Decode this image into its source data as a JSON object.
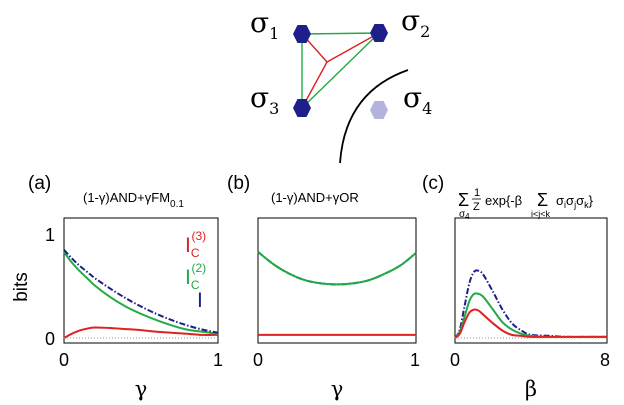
{
  "diagram": {
    "nodes": [
      {
        "label": "σ",
        "sub": "1"
      },
      {
        "label": "σ",
        "sub": "2"
      },
      {
        "label": "σ",
        "sub": "3"
      },
      {
        "label": "σ",
        "sub": "4"
      }
    ],
    "colors": {
      "node": "#1f1f8c",
      "node_faded": "#b3b3dd",
      "edge_pair": "#22aa44",
      "edge_triple": "#dd2222",
      "boundary": "#000000"
    }
  },
  "y_axis_label": "bits",
  "chart_data": [
    {
      "type": "line",
      "panel_letter": "(a)",
      "title_parts": {
        "a": "(1-γ)AND+γFM",
        "sub": "0.1"
      },
      "xlabel": "γ",
      "xlim": [
        0,
        1
      ],
      "ylim": [
        0,
        1
      ],
      "x_ticks": [
        "0",
        "1"
      ],
      "y_ticks": [
        "0",
        "1"
      ],
      "legend": [
        {
          "base": "I",
          "sub": "C",
          "sup": "(3)",
          "color": "#dd2222"
        },
        {
          "base": "I",
          "sub": "C",
          "sup": "(2)",
          "color": "#22aa44"
        },
        {
          "base": "I",
          "sub": "",
          "sup": "",
          "color": "#1f1f8c"
        }
      ],
      "x": [
        0,
        0.05,
        0.1,
        0.15,
        0.2,
        0.3,
        0.4,
        0.5,
        0.6,
        0.7,
        0.8,
        0.9,
        1.0
      ],
      "series": [
        {
          "color": "#dd2222",
          "style": "solid",
          "values": [
            0.0,
            0.04,
            0.07,
            0.09,
            0.1,
            0.095,
            0.085,
            0.075,
            0.06,
            0.05,
            0.04,
            0.03,
            0.03
          ]
        },
        {
          "color": "#22aa44",
          "style": "solid",
          "values": [
            0.82,
            0.72,
            0.64,
            0.57,
            0.5,
            0.39,
            0.3,
            0.23,
            0.17,
            0.12,
            0.08,
            0.06,
            0.04
          ]
        },
        {
          "color": "#1f1f8c",
          "style": "dashdot",
          "values": [
            0.84,
            0.76,
            0.69,
            0.63,
            0.57,
            0.47,
            0.38,
            0.3,
            0.23,
            0.17,
            0.12,
            0.08,
            0.05
          ]
        },
        {
          "color": "#999999",
          "style": "dotted",
          "values": [
            0,
            0,
            0,
            0,
            0,
            0,
            0,
            0,
            0,
            0,
            0,
            0,
            0
          ]
        }
      ]
    },
    {
      "type": "line",
      "panel_letter": "(b)",
      "title_parts": {
        "a": "(1-γ)AND+γOR",
        "sub": ""
      },
      "xlabel": "γ",
      "xlim": [
        0,
        1
      ],
      "ylim": [
        0,
        1
      ],
      "x_ticks": [
        "0",
        "1"
      ],
      "y_ticks": [],
      "legend": [],
      "x": [
        0,
        0.1,
        0.2,
        0.3,
        0.4,
        0.5,
        0.6,
        0.7,
        0.8,
        0.9,
        1.0
      ],
      "series": [
        {
          "color": "#dd2222",
          "style": "solid",
          "values": [
            0.03,
            0.03,
            0.03,
            0.03,
            0.03,
            0.03,
            0.03,
            0.03,
            0.03,
            0.03,
            0.03
          ]
        },
        {
          "color": "#1f1f8c",
          "style": "dashdot",
          "values": [
            0.82,
            0.7,
            0.61,
            0.55,
            0.52,
            0.51,
            0.52,
            0.55,
            0.61,
            0.69,
            0.81
          ]
        },
        {
          "color": "#22aa44",
          "style": "solid",
          "values": [
            0.82,
            0.7,
            0.61,
            0.55,
            0.52,
            0.51,
            0.52,
            0.55,
            0.61,
            0.69,
            0.81
          ]
        }
      ]
    },
    {
      "type": "line",
      "panel_letter": "(c)",
      "title_parts": {
        "sum1": "Σ",
        "sum1_sub": "σ",
        "sum1_subsub": "4",
        "frac_num": "1",
        "frac_den": "Z",
        "exp": "exp{-β",
        "sum2": "Σ",
        "sum2_sub": "i<j<k",
        "term": "σ",
        "term_subs": [
          "i",
          "j",
          "k"
        ],
        "close": "}"
      },
      "xlabel": "β",
      "xlim": [
        0,
        8
      ],
      "ylim": [
        0,
        1
      ],
      "x_ticks": [
        "0",
        "8"
      ],
      "y_ticks": [],
      "legend": [],
      "x": [
        0,
        0.25,
        0.5,
        0.75,
        1.0,
        1.25,
        1.5,
        2.0,
        2.5,
        3.0,
        3.5,
        4.0,
        5.0,
        6.0,
        7.0,
        8.0
      ],
      "series": [
        {
          "color": "#1f1f8c",
          "style": "dashdot",
          "values": [
            0,
            0.08,
            0.3,
            0.52,
            0.63,
            0.64,
            0.6,
            0.44,
            0.27,
            0.14,
            0.07,
            0.03,
            0.02,
            0.01,
            0.01,
            0.01
          ]
        },
        {
          "color": "#22aa44",
          "style": "solid",
          "values": [
            0,
            0.06,
            0.2,
            0.35,
            0.42,
            0.42,
            0.39,
            0.27,
            0.15,
            0.08,
            0.04,
            0.02,
            0.01,
            0.01,
            0.01,
            0.01
          ]
        },
        {
          "color": "#dd2222",
          "style": "solid",
          "values": [
            0,
            0.04,
            0.15,
            0.24,
            0.27,
            0.26,
            0.22,
            0.14,
            0.07,
            0.03,
            0.02,
            0.01,
            0.01,
            0.01,
            0.01,
            0.01
          ]
        },
        {
          "color": "#999999",
          "style": "dotted",
          "values": [
            0,
            0,
            0,
            0,
            0,
            0,
            0,
            0,
            0,
            0,
            0,
            0,
            0,
            0,
            0,
            0
          ]
        }
      ]
    }
  ]
}
